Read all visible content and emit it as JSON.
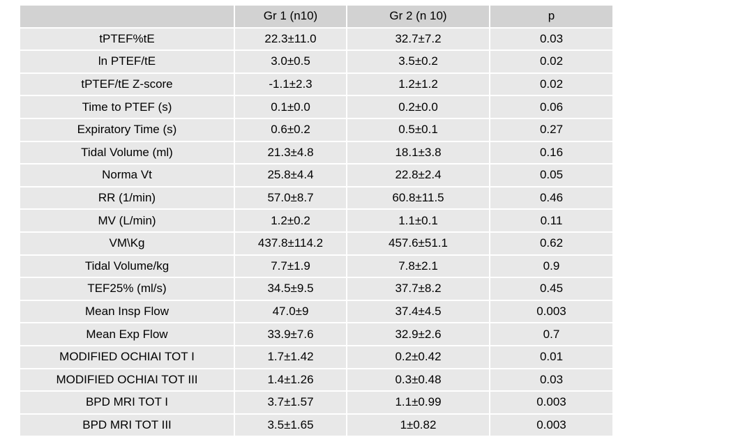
{
  "table": {
    "headers": [
      "",
      "Gr 1 (n10)",
      "Gr  2 (n 10)",
      "p"
    ],
    "rows": [
      [
        "tPTEF%tE",
        "22.3±11.0",
        "32.7±7.2",
        "0.03"
      ],
      [
        "ln PTEF/tE",
        "3.0±0.5",
        "3.5±0.2",
        "0.02"
      ],
      [
        "tPTEF/tE  Z-score",
        "-1.1±2.3",
        "1.2±1.2",
        "0.02"
      ],
      [
        "Time to PTEF (s)",
        "0.1±0.0",
        "0.2±0.0",
        "0.06"
      ],
      [
        "Expiratory Time (s)",
        "0.6±0.2",
        "0.5±0.1",
        "0.27"
      ],
      [
        "Tidal Volume (ml)",
        "21.3±4.8",
        "18.1±3.8",
        "0.16"
      ],
      [
        "Norma Vt",
        "25.8±4.4",
        "22.8±2.4",
        "0.05"
      ],
      [
        "RR (1/min)",
        "57.0±8.7",
        "60.8±11.5",
        "0.46"
      ],
      [
        "MV (L/min)",
        "1.2±0.2",
        "1.1±0.1",
        "0.11"
      ],
      [
        "VM\\Kg",
        "437.8±114.2",
        "457.6±51.1",
        "0.62"
      ],
      [
        "Tidal Volume/kg",
        "7.7±1.9",
        "7.8±2.1",
        "0.9"
      ],
      [
        "TEF25% (ml/s)",
        "34.5±9.5",
        "37.7±8.2",
        "0.45"
      ],
      [
        "Mean Insp Flow",
        "47.0±9",
        "37.4±4.5",
        "0.003"
      ],
      [
        "Mean Exp Flow",
        "33.9±7.6",
        "32.9±2.6",
        "0.7"
      ],
      [
        "MODIFIED OCHIAI TOT I",
        "1.7±1.42",
        "0.2±0.42",
        "0.01"
      ],
      [
        "MODIFIED OCHIAI TOT III",
        "1.4±1.26",
        "0.3±0.48",
        "0.03"
      ],
      [
        "BPD MRI TOT I",
        "3.7±1.57",
        "1.1±0.99",
        "0.003"
      ],
      [
        "BPD MRI TOT III",
        "3.5±1.65",
        "1±0.82",
        "0.003"
      ]
    ]
  },
  "colors": {
    "header_bg": "#d2d2d2",
    "row_bg": "#e8e8e8",
    "grid_line": "#ffffff",
    "text": "#000000"
  }
}
